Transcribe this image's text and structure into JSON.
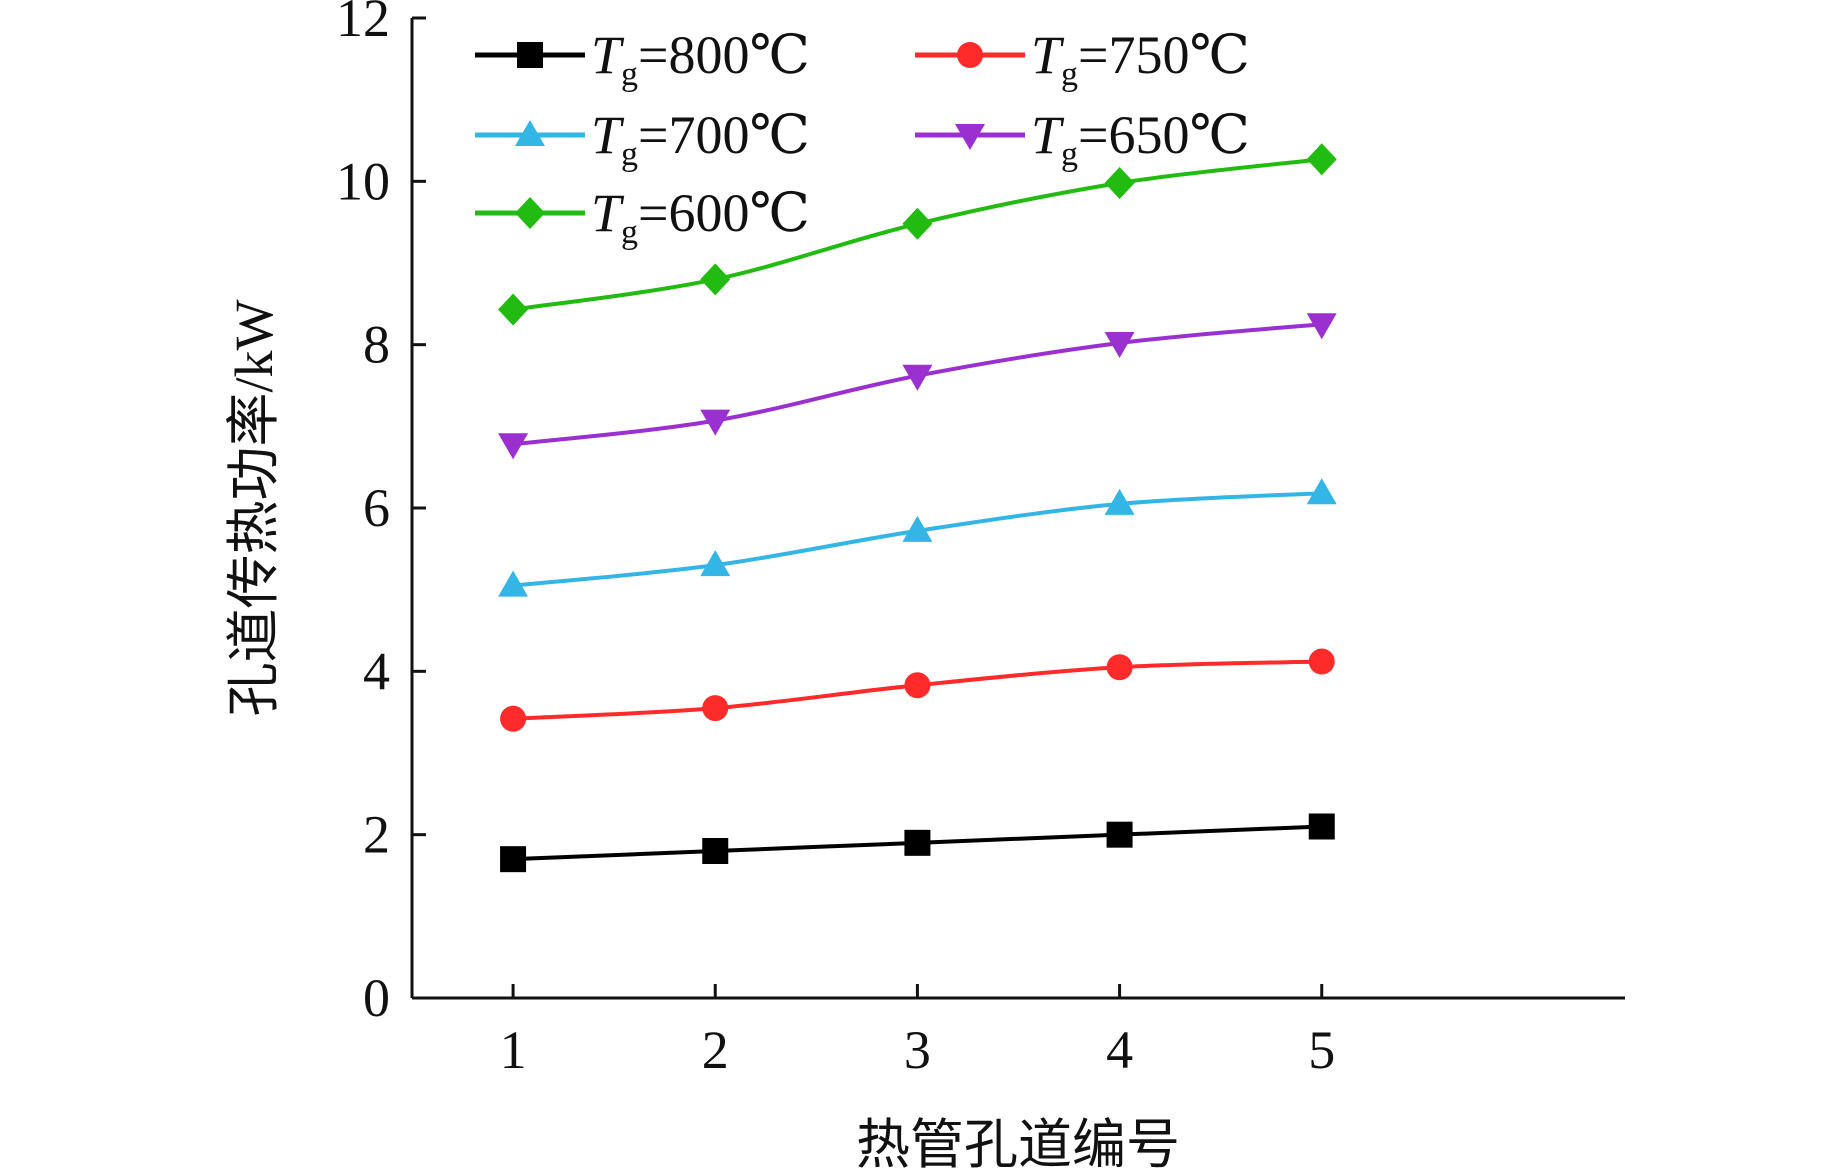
{
  "chart_data": {
    "type": "line",
    "title": "",
    "xlabel": "热管孔道编号",
    "ylabel": "孔道传热功率/kW",
    "x": [
      1,
      2,
      3,
      4,
      5
    ],
    "xlim": [
      0.5,
      6.5
    ],
    "ylim": [
      0,
      12
    ],
    "xticks": [
      "1",
      "2",
      "3",
      "4",
      "5"
    ],
    "yticks": [
      "0",
      "2",
      "4",
      "6",
      "8",
      "10",
      "12"
    ],
    "grid": false,
    "legend_position": "top-left, two columns",
    "series": [
      {
        "name": "800℃",
        "color": "#000000",
        "marker": "square",
        "values": [
          1.7,
          1.8,
          1.9,
          2.0,
          2.1
        ]
      },
      {
        "name": "750℃",
        "color": "#ff2a2a",
        "marker": "circle",
        "values": [
          3.42,
          3.55,
          3.83,
          4.05,
          4.12
        ]
      },
      {
        "name": "700℃",
        "color": "#33b5e5",
        "marker": "triangle-up",
        "values": [
          5.05,
          5.3,
          5.72,
          6.05,
          6.18
        ]
      },
      {
        "name": "650℃",
        "color": "#9b30d0",
        "marker": "triangle-down",
        "values": [
          6.78,
          7.07,
          7.62,
          8.02,
          8.25
        ]
      },
      {
        "name": "600℃",
        "color": "#22bb11",
        "marker": "diamond",
        "values": [
          8.43,
          8.8,
          9.48,
          9.98,
          10.27
        ]
      }
    ],
    "legend_prefix": "T",
    "legend_subscript": "g",
    "legend_equals": "="
  }
}
